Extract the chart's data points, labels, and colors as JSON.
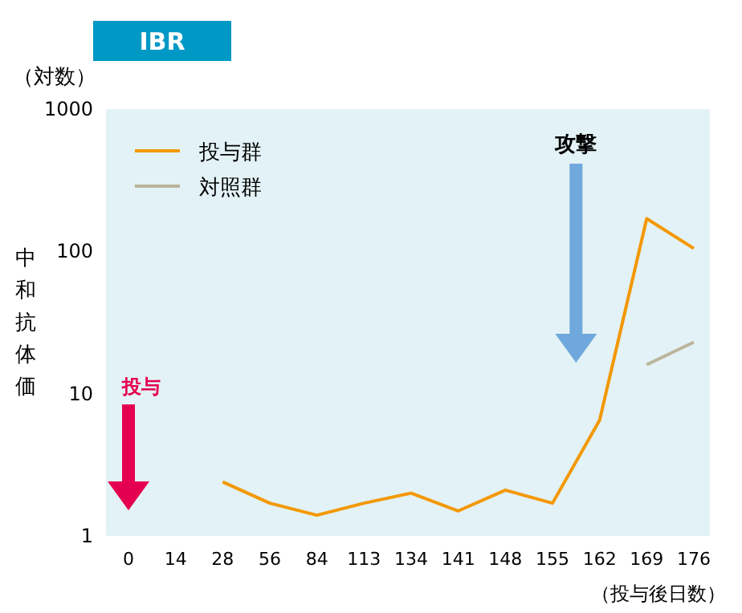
{
  "chart_data": {
    "type": "line",
    "title": "IBR",
    "ylabel": "中和抗体価",
    "xlabel": "（投与後日数）",
    "annotations": [
      "（対数）",
      "投与",
      "攻撃"
    ],
    "categories": [
      "0",
      "14",
      "28",
      "56",
      "84",
      "113",
      "134",
      "141",
      "148",
      "155",
      "162",
      "169",
      "176"
    ],
    "series": [
      {
        "name": "投与群",
        "color": "#f39800",
        "values": [
          null,
          null,
          2.4,
          1.7,
          1.4,
          1.7,
          2,
          1.5,
          2.1,
          1.7,
          6.5,
          170,
          105
        ]
      },
      {
        "name": "対照群",
        "color": "#bab49a",
        "values": [
          null,
          null,
          null,
          null,
          null,
          null,
          null,
          null,
          null,
          null,
          null,
          16,
          23
        ]
      }
    ],
    "log": true,
    "ylim": [
      1,
      1000
    ],
    "yticks": [
      1,
      10,
      100,
      1000
    ],
    "legend": "top left",
    "line_style": "solid",
    "grid": false
  }
}
